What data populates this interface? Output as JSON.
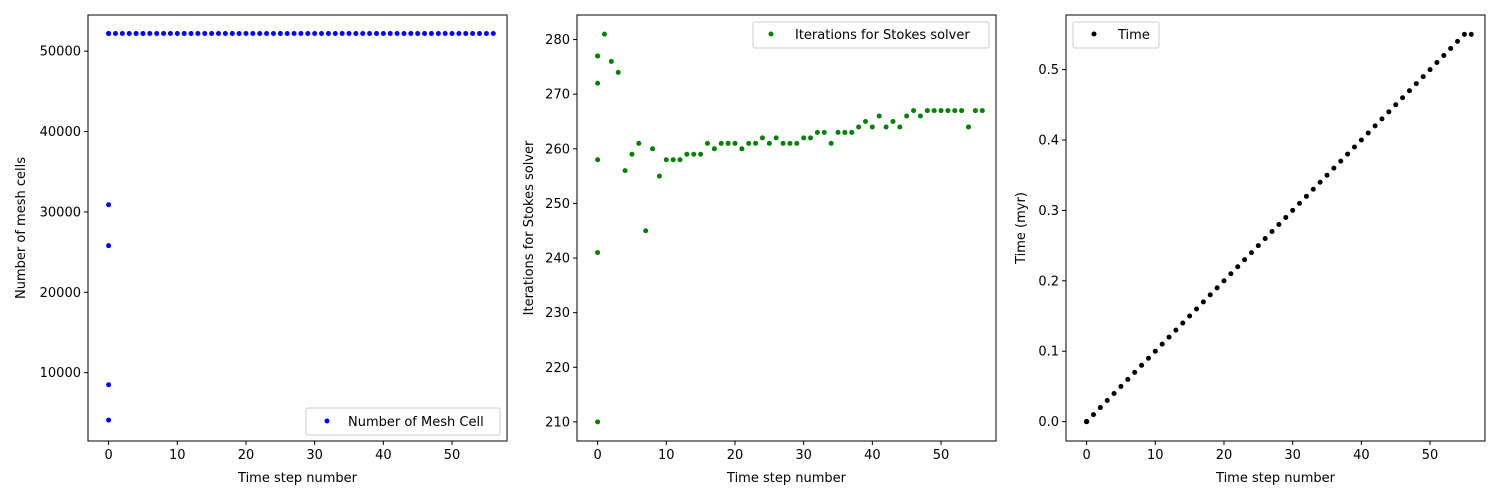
{
  "chart_data": [
    {
      "type": "scatter",
      "xlabel": "Time step number",
      "ylabel": "Number of mesh cells",
      "xlim": [
        -3,
        58
      ],
      "ylim": [
        1500,
        54500
      ],
      "xticks": [
        0,
        10,
        20,
        30,
        40,
        50
      ],
      "yticks": [
        10000,
        20000,
        30000,
        40000,
        50000
      ],
      "legend_position": "lower-right",
      "series": [
        {
          "name": "Number of Mesh Cell",
          "color": "#0000ff",
          "x": [
            0,
            0,
            0,
            0,
            0,
            0,
            1,
            2,
            3,
            4,
            5,
            6,
            7,
            8,
            9,
            10,
            11,
            12,
            13,
            14,
            15,
            16,
            17,
            18,
            19,
            20,
            21,
            22,
            23,
            24,
            25,
            26,
            27,
            28,
            29,
            30,
            31,
            32,
            33,
            34,
            35,
            36,
            37,
            38,
            39,
            40,
            41,
            42,
            43,
            44,
            45,
            46,
            47,
            48,
            49,
            50,
            51,
            52,
            53,
            54,
            55,
            56
          ],
          "y": [
            4100,
            8500,
            25800,
            30900,
            52200,
            52200,
            52200,
            52200,
            52200,
            52200,
            52200,
            52200,
            52200,
            52200,
            52200,
            52200,
            52200,
            52200,
            52200,
            52200,
            52200,
            52200,
            52200,
            52200,
            52200,
            52200,
            52200,
            52200,
            52200,
            52200,
            52200,
            52200,
            52200,
            52200,
            52200,
            52200,
            52200,
            52200,
            52200,
            52200,
            52200,
            52200,
            52200,
            52200,
            52200,
            52200,
            52200,
            52200,
            52200,
            52200,
            52200,
            52200,
            52200,
            52200,
            52200,
            52200,
            52200,
            52200,
            52200,
            52200,
            52200,
            52200
          ]
        }
      ]
    },
    {
      "type": "scatter",
      "xlabel": "Time step number",
      "ylabel": "Iterations for Stokes solver",
      "xlim": [
        -3,
        58
      ],
      "ylim": [
        206.5,
        284.5
      ],
      "xticks": [
        0,
        10,
        20,
        30,
        40,
        50
      ],
      "yticks": [
        210,
        220,
        230,
        240,
        250,
        260,
        270,
        280
      ],
      "legend_position": "top-right",
      "series": [
        {
          "name": "Iterations for Stokes solver",
          "color": "#008000",
          "x": [
            0,
            0,
            0,
            0,
            0,
            0,
            1,
            2,
            3,
            4,
            5,
            6,
            7,
            8,
            9,
            10,
            11,
            12,
            13,
            14,
            15,
            16,
            17,
            18,
            19,
            20,
            21,
            22,
            23,
            24,
            25,
            26,
            27,
            28,
            29,
            30,
            31,
            32,
            33,
            34,
            35,
            36,
            37,
            38,
            39,
            40,
            41,
            42,
            43,
            44,
            45,
            46,
            47,
            48,
            49,
            50,
            51,
            52,
            53,
            54,
            55,
            56
          ],
          "y": [
            210,
            241,
            258,
            272,
            277,
            277,
            281,
            276,
            274,
            256,
            259,
            261,
            245,
            260,
            255,
            258,
            258,
            258,
            259,
            259,
            259,
            261,
            260,
            261,
            261,
            261,
            260,
            261,
            261,
            262,
            261,
            262,
            261,
            261,
            261,
            262,
            262,
            263,
            263,
            261,
            263,
            263,
            263,
            264,
            265,
            264,
            266,
            264,
            265,
            264,
            266,
            267,
            266,
            267,
            267,
            267,
            267,
            267,
            267,
            264,
            267,
            267
          ]
        }
      ]
    },
    {
      "type": "scatter",
      "xlabel": "Time step number",
      "ylabel": "Time (myr)",
      "xlim": [
        -3,
        58
      ],
      "ylim": [
        -0.0275,
        0.5775
      ],
      "xticks": [
        0,
        10,
        20,
        30,
        40,
        50
      ],
      "yticks": [
        "0.0",
        "0.1",
        "0.2",
        "0.3",
        "0.4",
        "0.5"
      ],
      "legend_position": "top-left",
      "series": [
        {
          "name": "Time",
          "color": "#000000",
          "x": [
            0,
            0,
            0,
            0,
            0,
            0,
            1,
            2,
            3,
            4,
            5,
            6,
            7,
            8,
            9,
            10,
            11,
            12,
            13,
            14,
            15,
            16,
            17,
            18,
            19,
            20,
            21,
            22,
            23,
            24,
            25,
            26,
            27,
            28,
            29,
            30,
            31,
            32,
            33,
            34,
            35,
            36,
            37,
            38,
            39,
            40,
            41,
            42,
            43,
            44,
            45,
            46,
            47,
            48,
            49,
            50,
            51,
            52,
            53,
            54,
            55,
            56
          ],
          "y": [
            0,
            0,
            0,
            0,
            0,
            0,
            0.01,
            0.02,
            0.03,
            0.04,
            0.05,
            0.06,
            0.07,
            0.08,
            0.09,
            0.1,
            0.11,
            0.12,
            0.13,
            0.14,
            0.15,
            0.16,
            0.17,
            0.18,
            0.19,
            0.2,
            0.21,
            0.22,
            0.23,
            0.24,
            0.25,
            0.26,
            0.27,
            0.28,
            0.29,
            0.3,
            0.31,
            0.32,
            0.33,
            0.34,
            0.35,
            0.36,
            0.37,
            0.38,
            0.39,
            0.4,
            0.41,
            0.42,
            0.43,
            0.44,
            0.45,
            0.46,
            0.47,
            0.48,
            0.49,
            0.5,
            0.51,
            0.52,
            0.53,
            0.54,
            0.55,
            0.55
          ]
        }
      ]
    }
  ]
}
